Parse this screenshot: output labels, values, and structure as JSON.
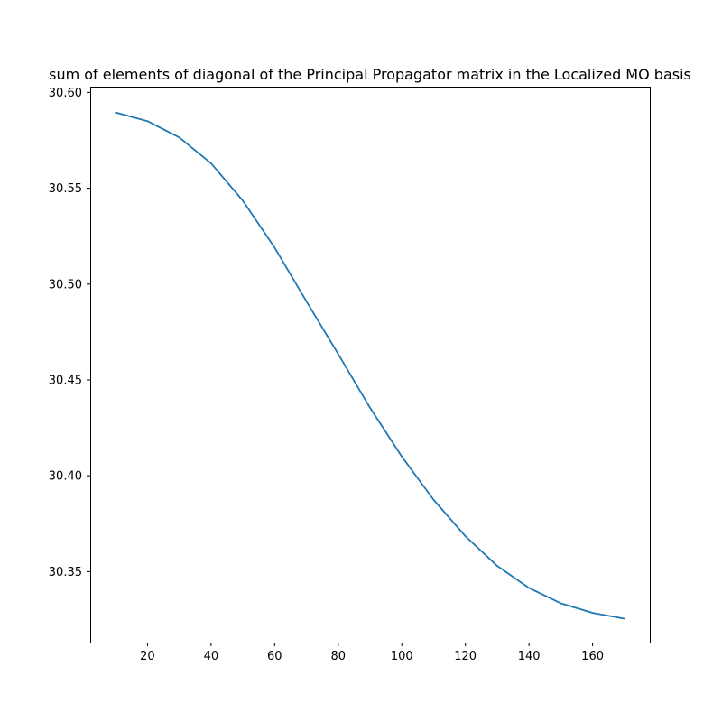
{
  "chart_data": {
    "type": "line",
    "title": "sum of elements of diagonal of the Principal Propagator matrix in the Localized MO basis",
    "xlabel": "",
    "ylabel": "",
    "xlim": [
      2,
      178
    ],
    "ylim": [
      30.313,
      30.603
    ],
    "xticks": [
      20,
      40,
      60,
      80,
      100,
      120,
      140,
      160
    ],
    "yticks": [
      30.35,
      30.4,
      30.45,
      30.5,
      30.55,
      30.6
    ],
    "ytick_labels": [
      "30.35",
      "30.40",
      "30.45",
      "30.50",
      "30.55",
      "30.60"
    ],
    "grid": false,
    "series": [
      {
        "color": "#1f77b4",
        "x": [
          10,
          20,
          30,
          40,
          50,
          60,
          70,
          80,
          90,
          100,
          110,
          120,
          130,
          140,
          150,
          160,
          170
        ],
        "y": [
          30.5895,
          30.585,
          30.5765,
          30.563,
          30.5435,
          30.519,
          30.491,
          30.4635,
          30.4355,
          30.41,
          30.3875,
          30.3685,
          30.353,
          30.3415,
          30.3335,
          30.3285,
          30.3255
        ]
      }
    ]
  }
}
